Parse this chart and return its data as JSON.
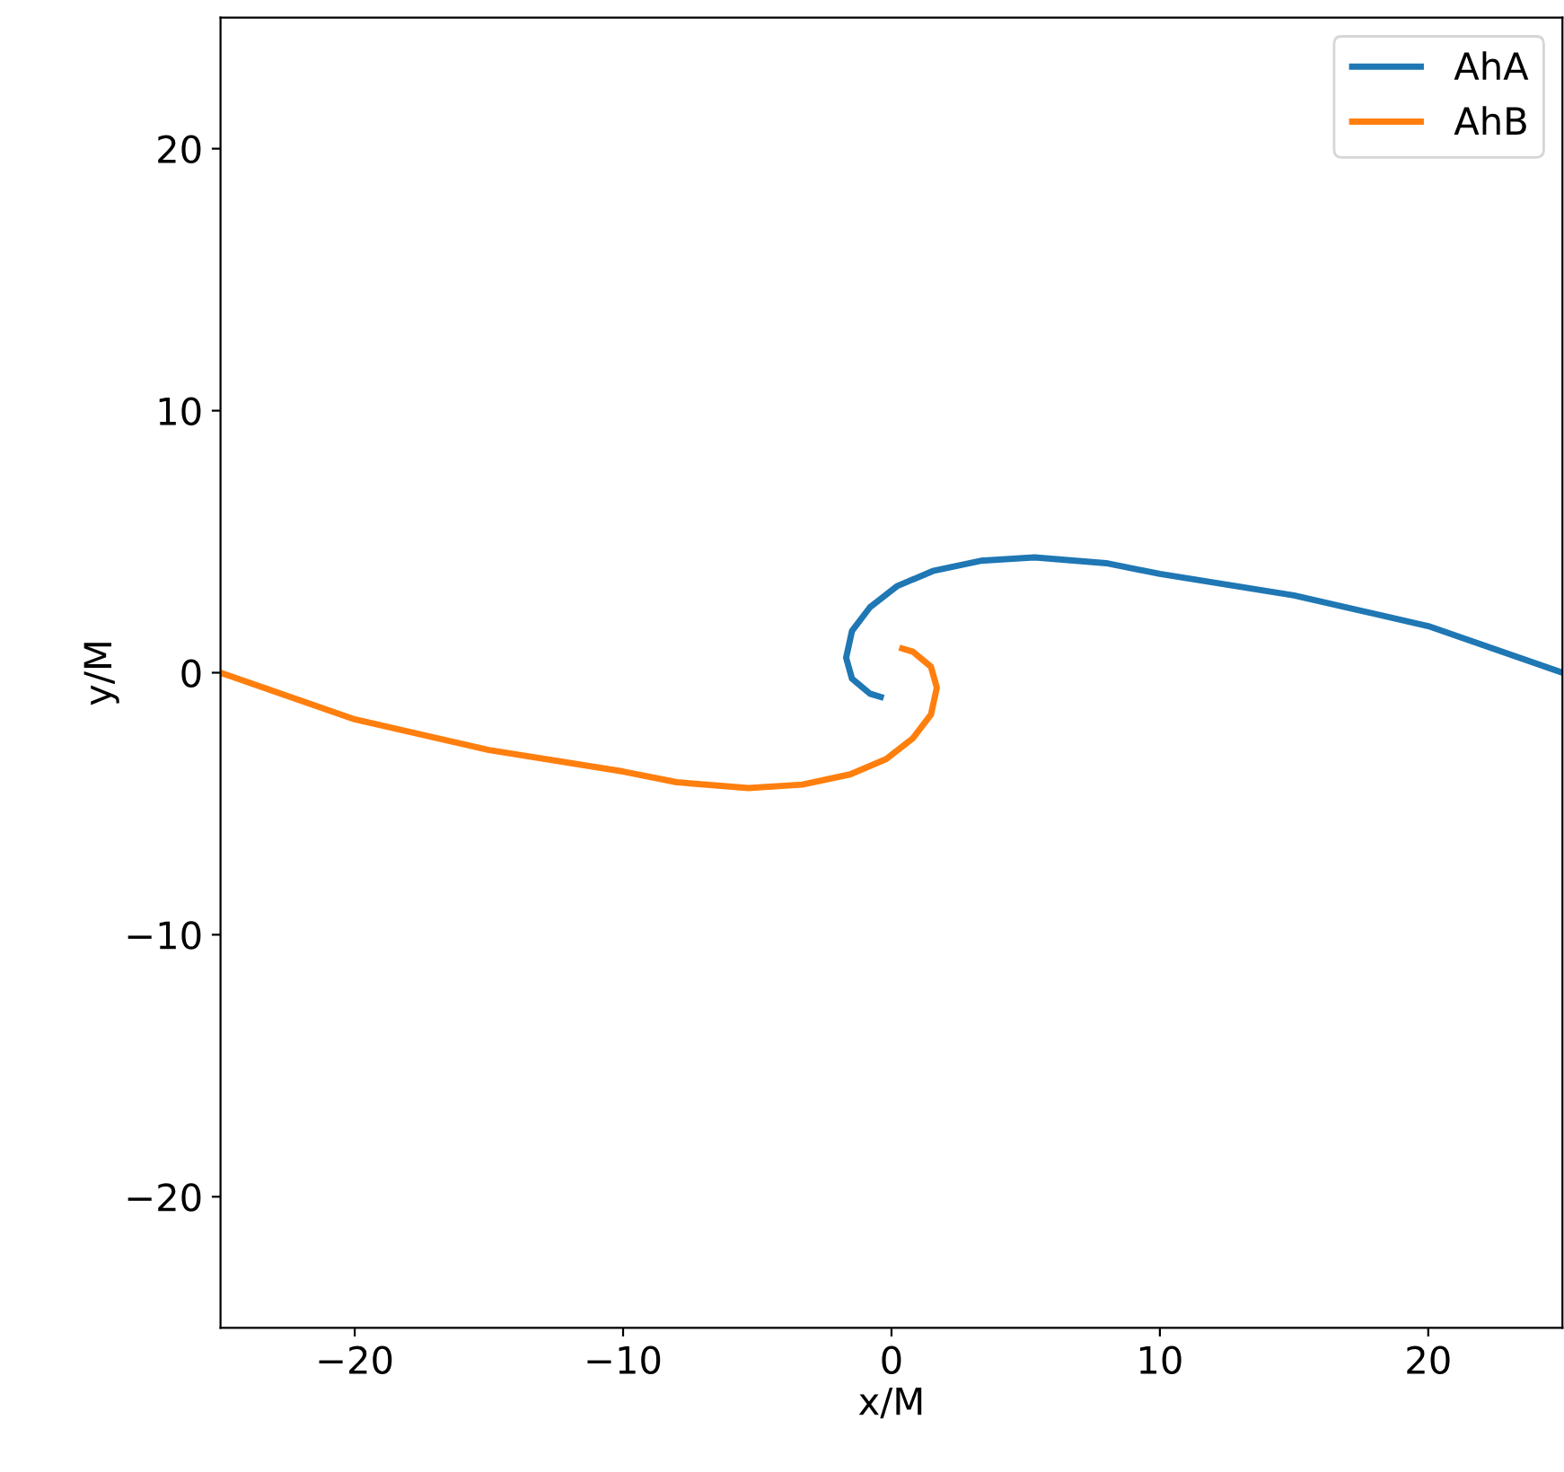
{
  "chart_data": {
    "type": "line",
    "xlabel": "x/M",
    "ylabel": "y/M",
    "xlim": [
      -25,
      25
    ],
    "ylim": [
      -25,
      25
    ],
    "xticks": [
      -20,
      -10,
      0,
      10,
      20
    ],
    "yticks": [
      -20,
      -10,
      0,
      10,
      20
    ],
    "grid": false,
    "legend": "top right",
    "series": [
      {
        "name": "AhA",
        "color": "#1f77b4",
        "x": [
          -0.29,
          -0.8,
          -1.47,
          -1.69,
          -1.47,
          -0.8,
          0.2,
          1.54,
          3.32,
          5.33,
          8.0,
          10,
          15,
          20,
          25
        ],
        "values": [
          -0.96,
          -0.8,
          -0.23,
          0.57,
          1.6,
          2.5,
          3.3,
          3.88,
          4.27,
          4.4,
          4.18,
          3.77,
          2.95,
          1.78,
          0
        ]
      },
      {
        "name": "AhB",
        "color": "#ff7f0e",
        "x": [
          0.29,
          0.8,
          1.47,
          1.69,
          1.47,
          0.8,
          -0.2,
          -1.54,
          -3.32,
          -5.33,
          -8.0,
          -10,
          -15,
          -20,
          -25
        ],
        "values": [
          0.96,
          0.8,
          0.23,
          -0.57,
          -1.6,
          -2.5,
          -3.3,
          -3.88,
          -4.27,
          -4.4,
          -4.18,
          -3.77,
          -2.95,
          -1.78,
          0
        ]
      }
    ]
  }
}
